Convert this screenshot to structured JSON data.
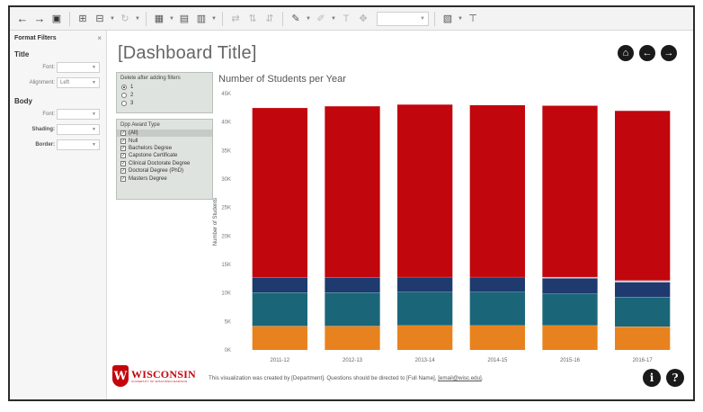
{
  "format_panel": {
    "header": "Format Filters",
    "close": "×",
    "title_section": "Title",
    "title_rows": [
      {
        "label": "Font:",
        "value": ""
      },
      {
        "label": "Alignment:",
        "value": "Left"
      }
    ],
    "body_section": "Body",
    "body_rows": [
      {
        "label": "Font:",
        "value": ""
      },
      {
        "label": "Shading:",
        "value": ""
      },
      {
        "label": "Border:",
        "value": ""
      }
    ]
  },
  "dashboard": {
    "title": "[Dashboard Title]",
    "nav": {
      "home": "⌂",
      "back": "←",
      "forward": "→"
    }
  },
  "filters": {
    "delete_after": {
      "title": "Delete after adding filters",
      "options": [
        "1",
        "2",
        "3"
      ],
      "selected": "1"
    },
    "award_type": {
      "title": "Dpp Award Type",
      "items": [
        "(All)",
        "Null",
        "Bachelors Degree",
        "Capstone Certificate",
        "Clinical Doctorate Degree",
        "Doctoral Degree (PhD)",
        "Masters Degree"
      ],
      "checked": true
    }
  },
  "chart_data": {
    "type": "bar",
    "stacked": true,
    "title": "Number of Students per Year",
    "ylabel": "Number of Students",
    "xlabel": "",
    "categories": [
      "2011-12",
      "2012-13",
      "2013-14",
      "2014-15",
      "2015-16",
      "2016-17"
    ],
    "y_ticks": [
      "0K",
      "5K",
      "10K",
      "15K",
      "20K",
      "25K",
      "30K",
      "35K",
      "40K",
      "45K"
    ],
    "ylim": [
      0,
      45000
    ],
    "grid": false,
    "series": [
      {
        "color": "#e8821e",
        "values": [
          4200,
          4200,
          4300,
          4300,
          4300,
          4100
        ]
      },
      {
        "color": "#1a6678",
        "values": [
          5900,
          5900,
          5900,
          5900,
          5600,
          5200
        ]
      },
      {
        "color": "#1e3a6e",
        "values": [
          2600,
          2600,
          2600,
          2600,
          2700,
          2600
        ]
      },
      {
        "color": "#b7c2d3",
        "values": [
          0,
          0,
          0,
          0,
          200,
          300
        ]
      },
      {
        "color": "#c1060d",
        "values": [
          29800,
          30100,
          30300,
          30200,
          30100,
          29800
        ]
      }
    ]
  },
  "footer": {
    "logo_word": "WISCONSIN",
    "logo_sub": "UNIVERSITY OF WISCONSIN-MADISON",
    "logo_crest": "W",
    "text": "This visualization was created by [Department]. Questions should be directed to [Full Name], ",
    "email": "[email@wisc.edu]",
    "text_end": ".",
    "info": "i",
    "help": "?"
  }
}
